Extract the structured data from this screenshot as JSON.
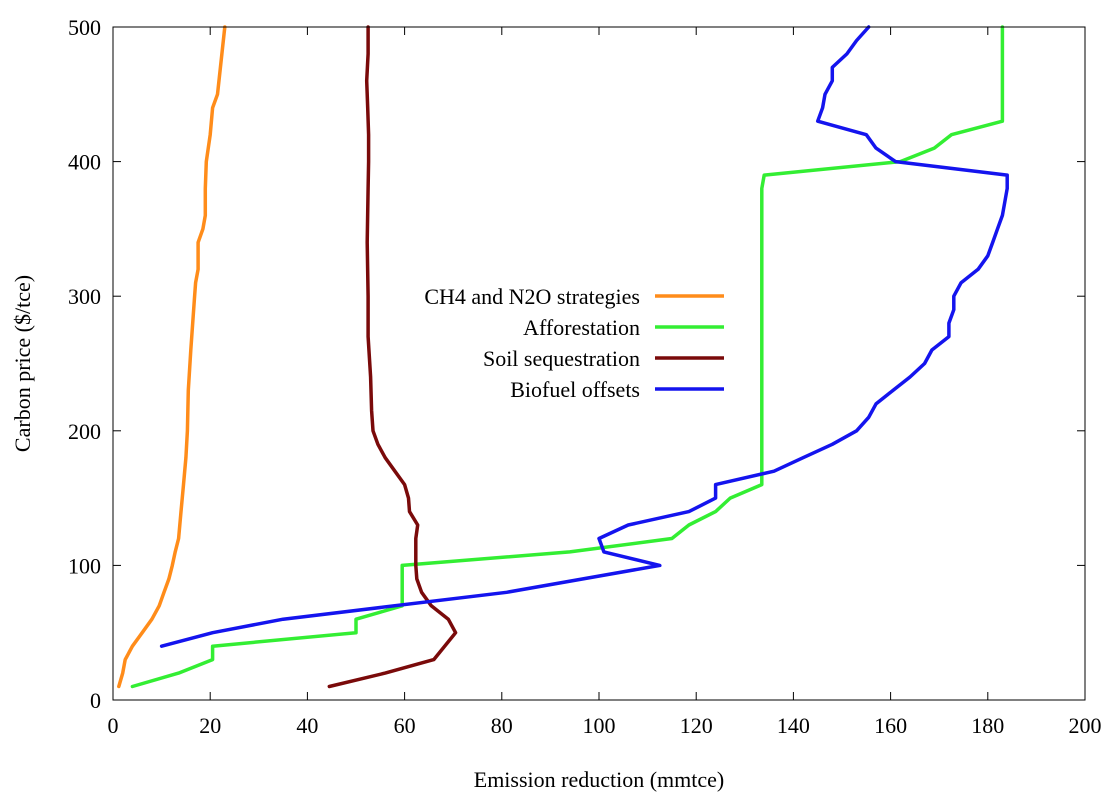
{
  "chart_data": {
    "type": "line",
    "title": "",
    "xlabel": "Emission reduction (mmtce)",
    "ylabel": "Carbon price ($/tce)",
    "xlim": [
      0,
      200
    ],
    "ylim": [
      0,
      500
    ],
    "xticks": [
      0,
      20,
      40,
      60,
      80,
      100,
      120,
      140,
      160,
      180,
      200
    ],
    "yticks": [
      0,
      100,
      200,
      300,
      400,
      500
    ],
    "grid": false,
    "legend_position": "center",
    "series": [
      {
        "name": "CH4 and N2O strategies",
        "color": "#ff8c1a",
        "points": [
          [
            1.2,
            10
          ],
          [
            2,
            20
          ],
          [
            2.5,
            30
          ],
          [
            4,
            40
          ],
          [
            6,
            50
          ],
          [
            8,
            60
          ],
          [
            9.5,
            70
          ],
          [
            10.5,
            80
          ],
          [
            11.5,
            90
          ],
          [
            12.2,
            100
          ],
          [
            12.8,
            110
          ],
          [
            13.5,
            120
          ],
          [
            14,
            140
          ],
          [
            14.5,
            160
          ],
          [
            15,
            180
          ],
          [
            15.3,
            200
          ],
          [
            15.5,
            230
          ],
          [
            16,
            260
          ],
          [
            16.8,
            300
          ],
          [
            17,
            310
          ],
          [
            17.5,
            320
          ],
          [
            17.5,
            340
          ],
          [
            18.5,
            350
          ],
          [
            19,
            360
          ],
          [
            19,
            380
          ],
          [
            19.2,
            400
          ],
          [
            20,
            420
          ],
          [
            20.5,
            440
          ],
          [
            21.5,
            450
          ],
          [
            23,
            500
          ]
        ]
      },
      {
        "name": "Afforestation",
        "color": "#33ee33",
        "points": [
          [
            4,
            10
          ],
          [
            13.5,
            20
          ],
          [
            20.5,
            30
          ],
          [
            20.5,
            40
          ],
          [
            50,
            50
          ],
          [
            50,
            60
          ],
          [
            59.5,
            70
          ],
          [
            59.5,
            100
          ],
          [
            94,
            110
          ],
          [
            115,
            120
          ],
          [
            118.5,
            130
          ],
          [
            124,
            140
          ],
          [
            127,
            150
          ],
          [
            133.5,
            160
          ],
          [
            133.5,
            380
          ],
          [
            134,
            390
          ],
          [
            162,
            400
          ],
          [
            169,
            410
          ],
          [
            172.5,
            420
          ],
          [
            183,
            430
          ],
          [
            183,
            500
          ]
        ]
      },
      {
        "name": "Soil sequestration",
        "color": "#7a0a0a",
        "points": [
          [
            44.5,
            10
          ],
          [
            56,
            20
          ],
          [
            66,
            30
          ],
          [
            70.5,
            50
          ],
          [
            69,
            60
          ],
          [
            65.5,
            70
          ],
          [
            63.5,
            80
          ],
          [
            62.5,
            90
          ],
          [
            62.3,
            100
          ],
          [
            62.3,
            120
          ],
          [
            62.7,
            130
          ],
          [
            61,
            140
          ],
          [
            60.8,
            150
          ],
          [
            60,
            160
          ],
          [
            58,
            170
          ],
          [
            56,
            180
          ],
          [
            54.5,
            190
          ],
          [
            53.5,
            200
          ],
          [
            53.2,
            215
          ],
          [
            53,
            240
          ],
          [
            52.5,
            270
          ],
          [
            52.5,
            300
          ],
          [
            52.3,
            340
          ],
          [
            52.5,
            380
          ],
          [
            52.6,
            400
          ],
          [
            52.6,
            420
          ],
          [
            52.4,
            440
          ],
          [
            52.2,
            460
          ],
          [
            52.5,
            480
          ],
          [
            52.5,
            500
          ]
        ]
      },
      {
        "name": "Biofuel offsets",
        "color": "#1414ee",
        "points": [
          [
            10,
            40
          ],
          [
            20.5,
            50
          ],
          [
            35,
            60
          ],
          [
            81,
            80
          ],
          [
            112.5,
            100
          ],
          [
            101,
            110
          ],
          [
            100,
            120
          ],
          [
            106,
            130
          ],
          [
            118.5,
            140
          ],
          [
            124,
            150
          ],
          [
            124,
            160
          ],
          [
            136,
            170
          ],
          [
            142,
            180
          ],
          [
            148,
            190
          ],
          [
            153,
            200
          ],
          [
            155.5,
            210
          ],
          [
            157,
            220
          ],
          [
            160.5,
            230
          ],
          [
            164,
            240
          ],
          [
            167,
            250
          ],
          [
            168.5,
            260
          ],
          [
            172,
            270
          ],
          [
            172,
            280
          ],
          [
            173,
            290
          ],
          [
            173,
            300
          ],
          [
            174.5,
            310
          ],
          [
            178,
            320
          ],
          [
            180,
            330
          ],
          [
            181,
            340
          ],
          [
            182,
            350
          ],
          [
            183,
            360
          ],
          [
            183.5,
            370
          ],
          [
            184,
            380
          ],
          [
            184,
            390
          ],
          [
            161,
            400
          ],
          [
            157,
            410
          ],
          [
            155,
            420
          ],
          [
            145,
            430
          ],
          [
            146,
            440
          ],
          [
            146.5,
            450
          ],
          [
            148,
            460
          ],
          [
            148,
            470
          ],
          [
            151,
            480
          ],
          [
            153,
            490
          ],
          [
            155.5,
            500
          ]
        ]
      }
    ]
  }
}
